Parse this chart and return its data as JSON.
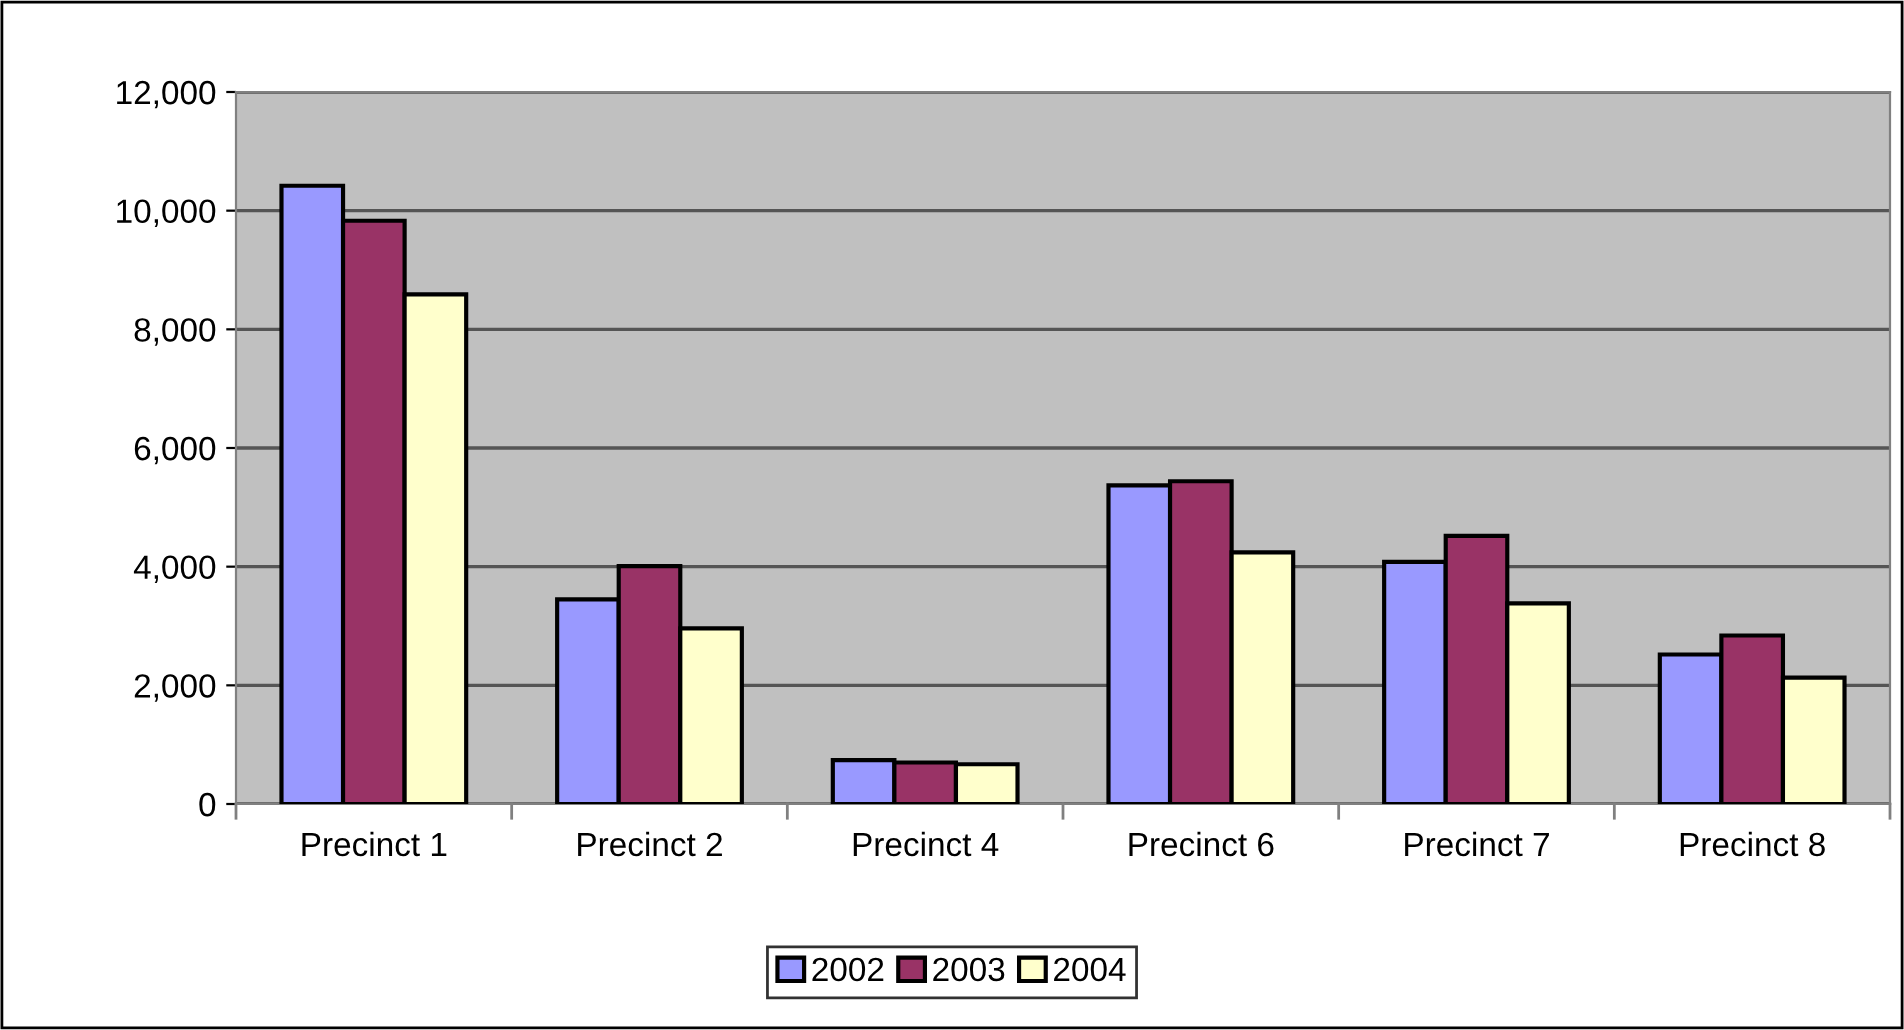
{
  "chart_data": {
    "type": "bar",
    "categories": [
      "Precinct 1",
      "Precinct 2",
      "Precinct 4",
      "Precinct 6",
      "Precinct 7",
      "Precinct 8"
    ],
    "series": [
      {
        "name": "2002",
        "color": "#9999ff",
        "values": [
          10420,
          3450,
          740,
          5370,
          4080,
          2520
        ]
      },
      {
        "name": "2003",
        "color": "#993366",
        "values": [
          9830,
          4010,
          700,
          5440,
          4520,
          2840
        ]
      },
      {
        "name": "2004",
        "color": "#ffffcc",
        "values": [
          8590,
          2960,
          670,
          4240,
          3380,
          2130
        ]
      }
    ],
    "ylim": [
      0,
      12000
    ],
    "yticks": [
      {
        "value": 0,
        "label": "0"
      },
      {
        "value": 2000,
        "label": "2,000"
      },
      {
        "value": 4000,
        "label": "4,000"
      },
      {
        "value": 6000,
        "label": "6,000"
      },
      {
        "value": 8000,
        "label": "8,000"
      },
      {
        "value": 10000,
        "label": "10,000"
      },
      {
        "value": 12000,
        "label": "12,000"
      }
    ],
    "grid": "y",
    "legend": "bottom"
  }
}
